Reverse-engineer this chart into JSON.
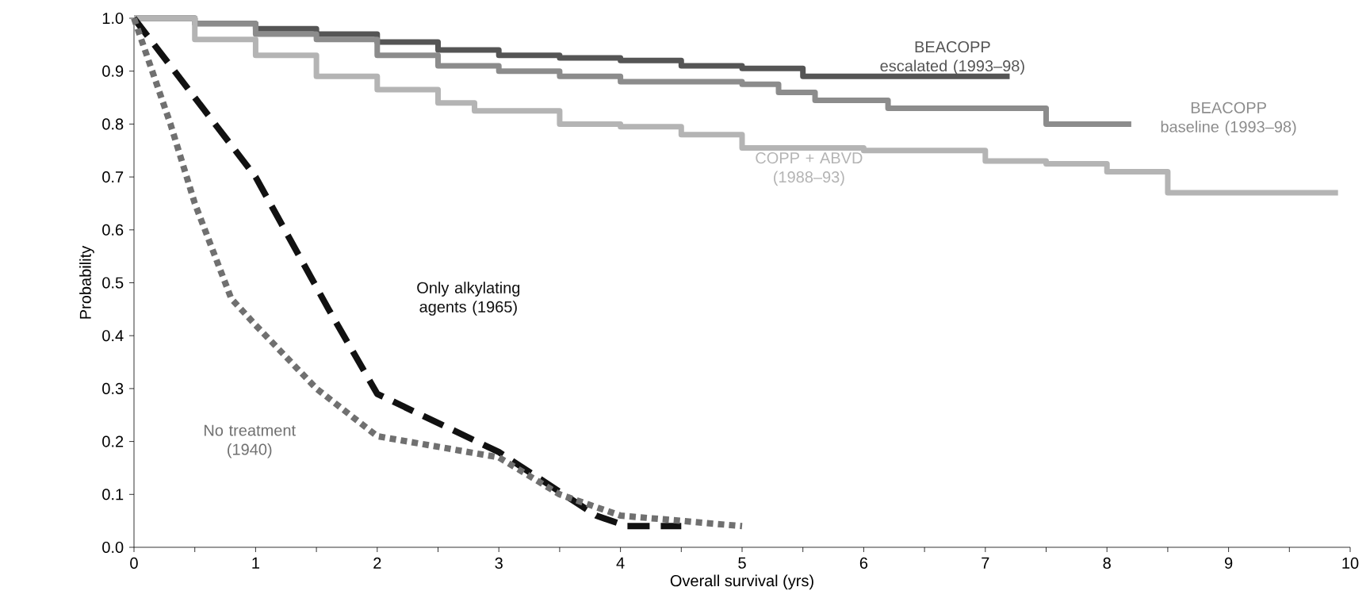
{
  "chart_data": {
    "type": "line",
    "xlabel": "Overall survival (yrs)",
    "ylabel": "Probability",
    "xlim": [
      0,
      10
    ],
    "ylim": [
      0,
      1
    ],
    "xticks": [
      0,
      {
        "value": 0.5,
        "label": null
      },
      1,
      {
        "value": 1.5,
        "label": null
      },
      2,
      {
        "value": 2.5,
        "label": null
      },
      3,
      {
        "value": 3.5,
        "label": null
      },
      4,
      {
        "value": 4.5,
        "label": null
      },
      5,
      {
        "value": 5.5,
        "label": null
      },
      6,
      {
        "value": 6.5,
        "label": null
      },
      7,
      {
        "value": 7.5,
        "label": null
      },
      8,
      {
        "value": 8.5,
        "label": null
      },
      9,
      {
        "value": 9.5,
        "label": null
      },
      10
    ],
    "yticks": [
      {
        "value": 0,
        "label": "0.0"
      },
      0.1,
      0.2,
      0.3,
      0.4,
      0.5,
      0.6,
      0.7,
      0.8,
      0.9,
      {
        "value": 1,
        "label": "1.0"
      }
    ],
    "series": [
      {
        "name": "BEACOPP escalated (1993–98)",
        "type": "step",
        "line_style": "solid",
        "color": "#555555",
        "x": [
          0,
          0.5,
          1,
          1.5,
          2,
          2.5,
          3,
          3.5,
          4,
          4.5,
          5,
          5.5,
          7.2
        ],
        "values": [
          1.0,
          0.99,
          0.98,
          0.97,
          0.955,
          0.94,
          0.93,
          0.925,
          0.92,
          0.91,
          0.905,
          0.89,
          0.89
        ]
      },
      {
        "name": "BEACOPP baseline (1993–98)",
        "type": "step",
        "line_style": "solid",
        "color": "#8c8c8c",
        "x": [
          0,
          0.5,
          1,
          1.5,
          2,
          2.5,
          3,
          3.5,
          4,
          5,
          5.3,
          5.6,
          6.2,
          7.5,
          8.2
        ],
        "values": [
          1.0,
          0.99,
          0.97,
          0.96,
          0.93,
          0.91,
          0.9,
          0.89,
          0.88,
          0.875,
          0.86,
          0.845,
          0.83,
          0.8,
          0.8
        ]
      },
      {
        "name": "COPP + ABVD (1988–93)",
        "type": "step",
        "line_style": "solid",
        "color": "#b4b4b4",
        "x": [
          0,
          0.5,
          1,
          1.5,
          2,
          2.5,
          2.8,
          3.5,
          4,
          4.5,
          5,
          6,
          7,
          7.5,
          8,
          8.5,
          9.9
        ],
        "values": [
          1.0,
          0.96,
          0.93,
          0.89,
          0.865,
          0.84,
          0.825,
          0.8,
          0.795,
          0.78,
          0.755,
          0.75,
          0.73,
          0.725,
          0.71,
          0.67,
          0.67
        ]
      },
      {
        "name": "Only alkylating agents (1965)",
        "line_style": "dashed",
        "color": "#111111",
        "x": [
          0,
          1,
          1.6,
          2,
          3,
          3.8,
          4.05,
          4.5
        ],
        "values": [
          1.0,
          0.7,
          0.45,
          0.29,
          0.18,
          0.06,
          0.04,
          0.04
        ]
      },
      {
        "name": "No treatment (1940)",
        "line_style": "dotted",
        "color": "#707070",
        "x": [
          0,
          0.3,
          0.5,
          0.8,
          1,
          1.5,
          2,
          3,
          3.5,
          4,
          5
        ],
        "values": [
          1.0,
          0.8,
          0.65,
          0.47,
          0.42,
          0.3,
          0.21,
          0.17,
          0.1,
          0.06,
          0.04
        ]
      }
    ]
  }
}
